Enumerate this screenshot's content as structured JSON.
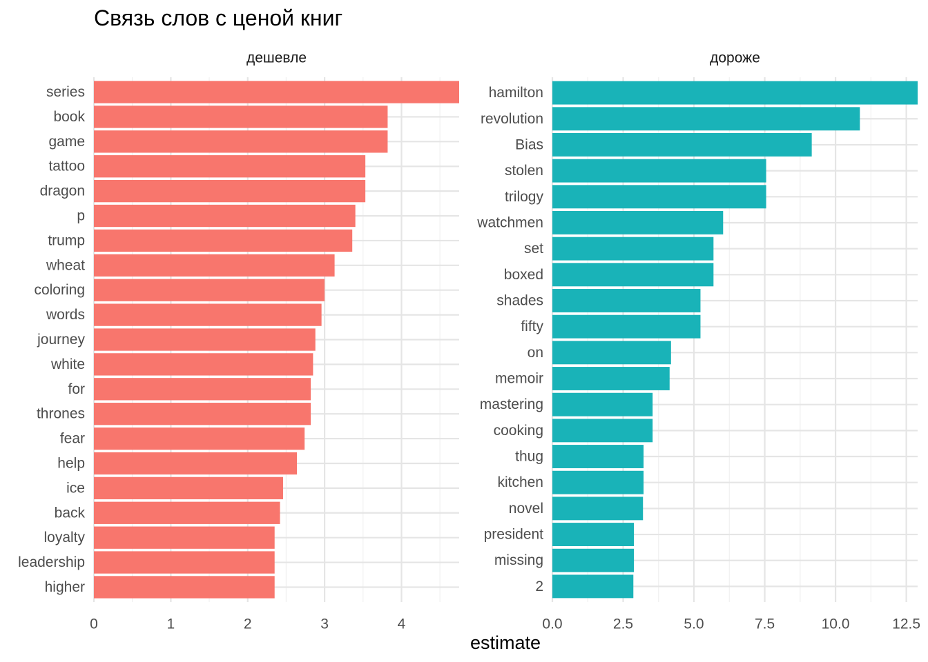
{
  "title": "Связь слов с ценой книг",
  "chart_data": {
    "type": "bar",
    "orientation": "horizontal",
    "title": "Связь слов с ценой книг",
    "xlabel": "estimate",
    "ylabel": "",
    "grid": true,
    "legend": "none",
    "panels": [
      {
        "name": "дешевле",
        "color": "#F8766D",
        "xlim": [
          0,
          4.75
        ],
        "ticks": [
          0,
          1,
          2,
          3,
          4
        ],
        "tick_labels": [
          "0",
          "1",
          "2",
          "3",
          "4"
        ],
        "categories": [
          "series",
          "book",
          "game",
          "tattoo",
          "dragon",
          "p",
          "trump",
          "wheat",
          "coloring",
          "words",
          "journey",
          "white",
          "for",
          "thrones",
          "fear",
          "help",
          "ice",
          "back",
          "loyalty",
          "leadership",
          "higher"
        ],
        "values": [
          4.75,
          3.82,
          3.82,
          3.53,
          3.53,
          3.4,
          3.36,
          3.13,
          3.0,
          2.96,
          2.88,
          2.85,
          2.82,
          2.82,
          2.74,
          2.64,
          2.46,
          2.42,
          2.35,
          2.35,
          2.35
        ]
      },
      {
        "name": "дороже",
        "color": "#19B3B8",
        "xlim": [
          0,
          12.9
        ],
        "ticks": [
          0,
          2.5,
          5,
          7.5,
          10,
          12.5
        ],
        "tick_labels": [
          "0.0",
          "2.5",
          "5.0",
          "7.5",
          "10.0",
          "12.5"
        ],
        "categories": [
          "hamilton",
          "revolution",
          "Bias",
          "stolen",
          "trilogy",
          "watchmen",
          "set",
          "boxed",
          "shades",
          "fifty",
          "on",
          "memoir",
          "mastering",
          "cooking",
          "thug",
          "kitchen",
          "novel",
          "president",
          "missing",
          "2"
        ],
        "values": [
          12.9,
          10.86,
          9.16,
          7.55,
          7.55,
          6.03,
          5.69,
          5.69,
          5.23,
          5.23,
          4.19,
          4.14,
          3.54,
          3.54,
          3.22,
          3.22,
          3.2,
          2.88,
          2.88,
          2.86
        ]
      }
    ]
  }
}
